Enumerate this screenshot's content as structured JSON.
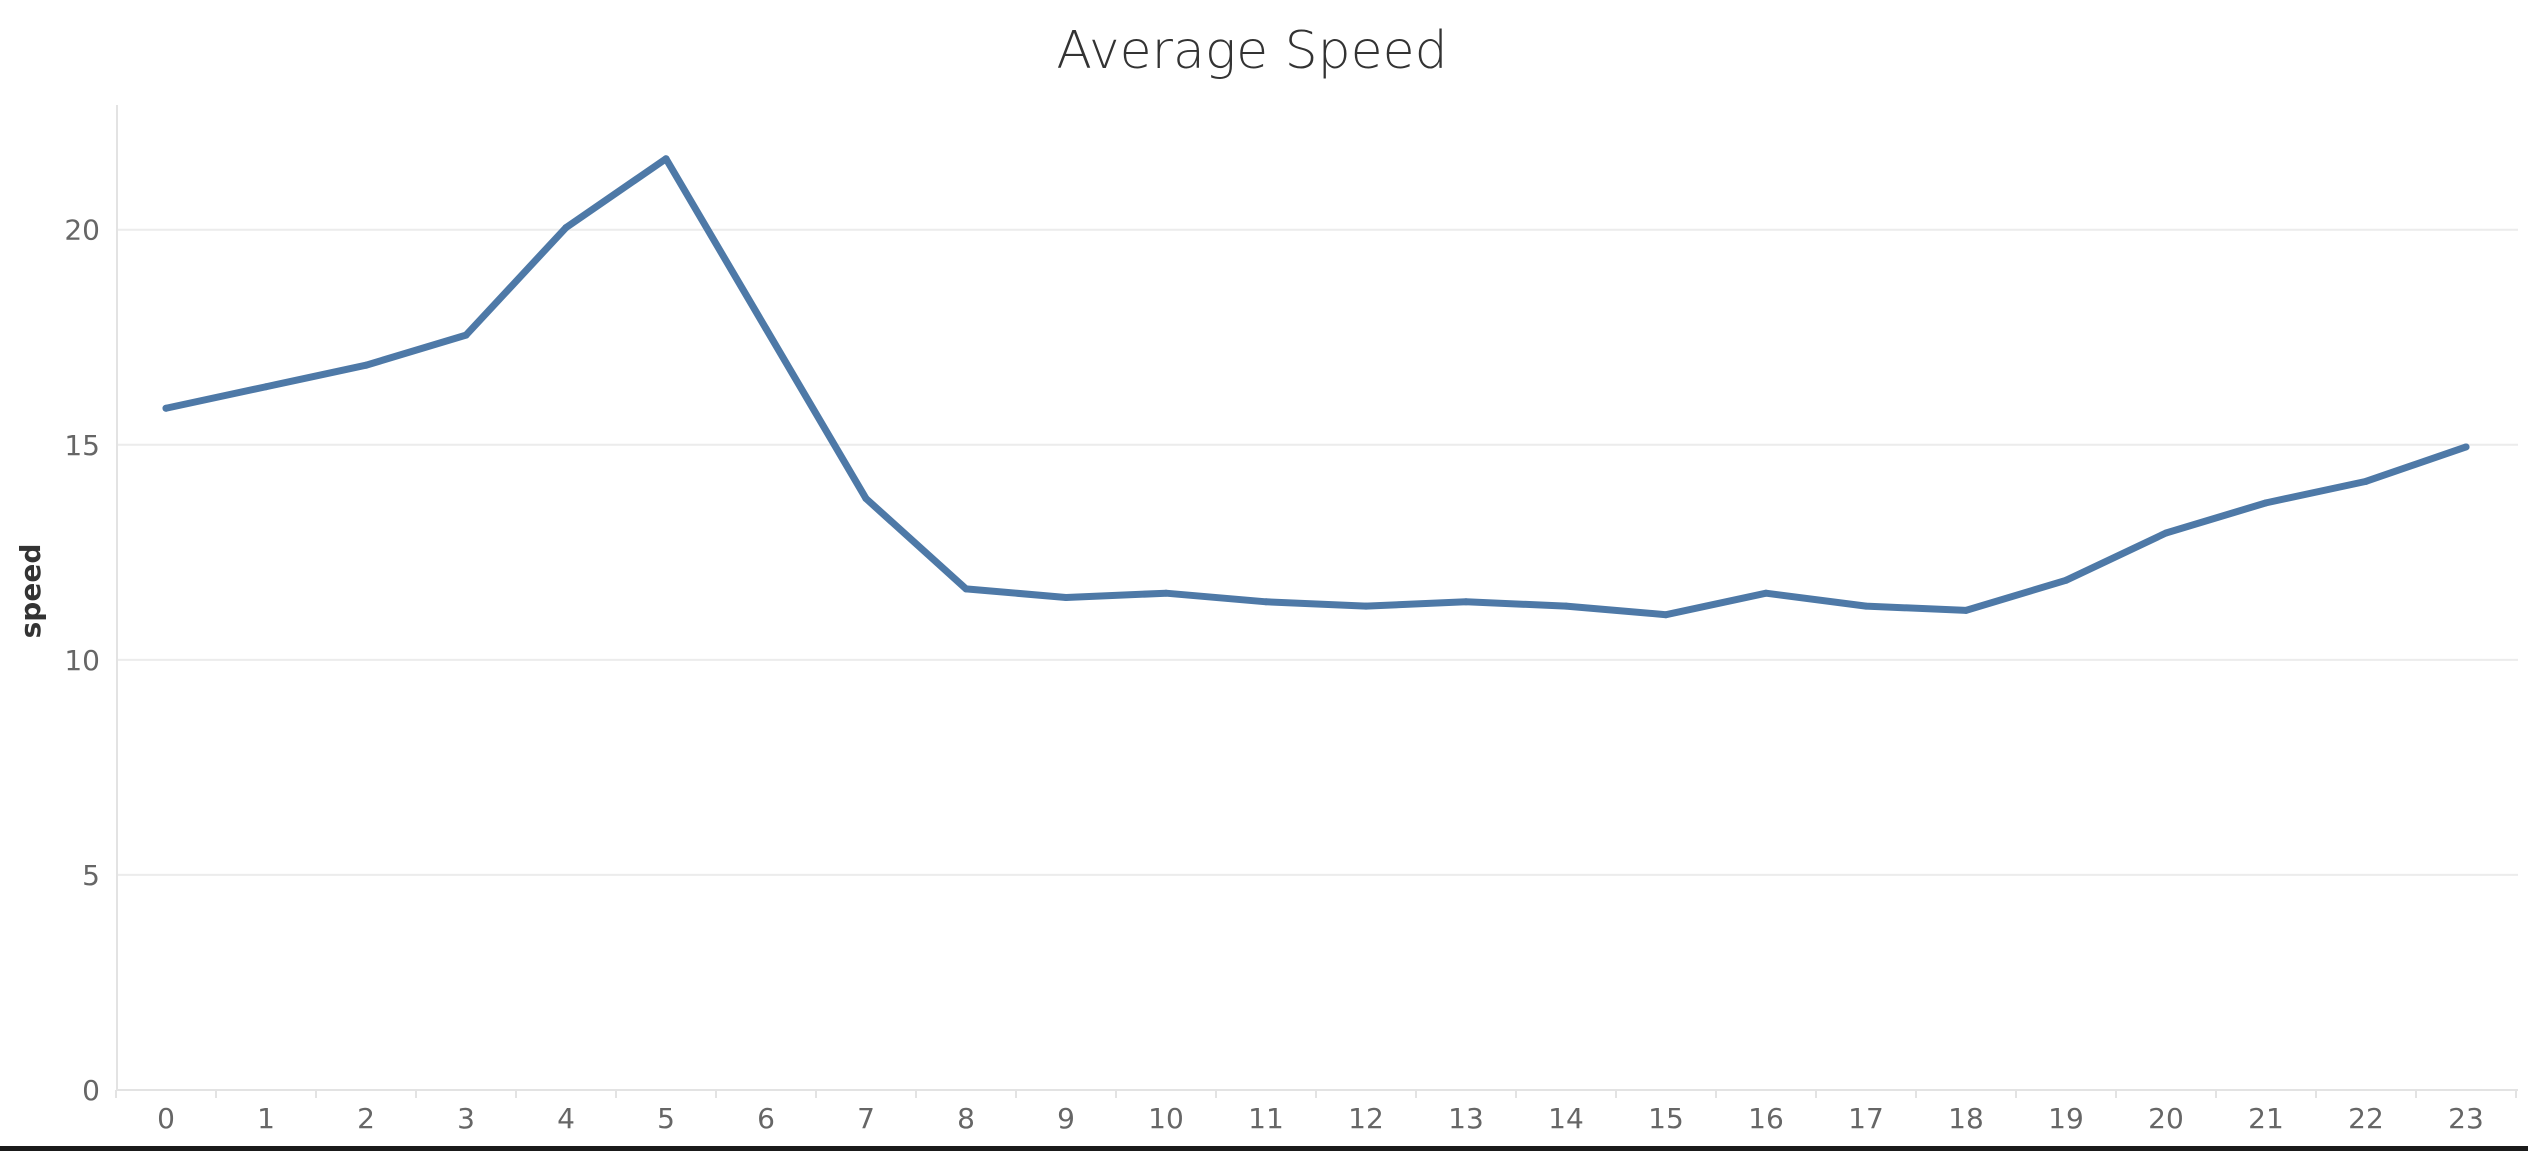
{
  "chart_data": {
    "type": "line",
    "title": "Average Speed",
    "xlabel": "",
    "ylabel": "speed",
    "x": [
      0,
      1,
      2,
      3,
      4,
      5,
      6,
      7,
      8,
      9,
      10,
      11,
      12,
      13,
      14,
      15,
      16,
      17,
      18,
      19,
      20,
      21,
      22,
      23
    ],
    "x_tick_labels": [
      "0",
      "1",
      "2",
      "3",
      "4",
      "5",
      "6",
      "7",
      "8",
      "9",
      "10",
      "11",
      "12",
      "13",
      "14",
      "15",
      "16",
      "17",
      "18",
      "19",
      "20",
      "21",
      "22",
      "23"
    ],
    "series": [
      {
        "values": [
          15.85,
          16.35,
          16.85,
          17.55,
          20.05,
          21.65,
          17.7,
          13.75,
          11.65,
          11.45,
          11.55,
          11.35,
          11.25,
          11.35,
          11.25,
          11.05,
          11.55,
          11.25,
          11.15,
          11.85,
          12.95,
          13.65,
          14.15,
          14.95
        ],
        "color": "#4e79a7"
      }
    ],
    "y_ticks": [
      0,
      5,
      10,
      15,
      20
    ],
    "ylim": [
      0,
      22.9
    ],
    "grid": true,
    "legend": "none"
  }
}
